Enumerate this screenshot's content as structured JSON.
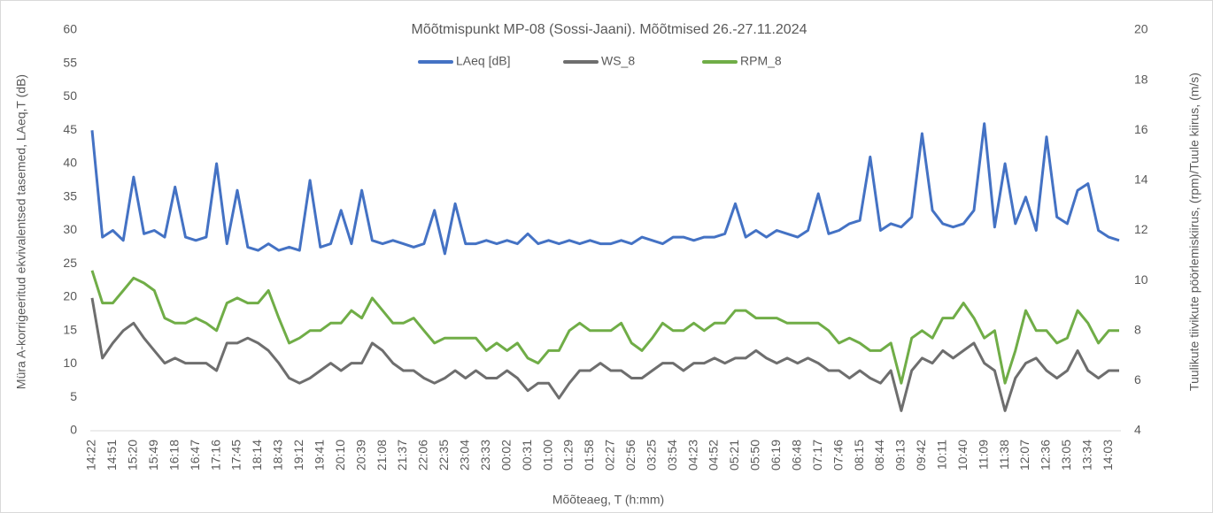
{
  "chart_data": {
    "type": "line",
    "title": "Mõõtmispunkt MP-08 (Sossi-Jaani). Mõõtmised 26.-27.11.2024",
    "x_label": "Mõõteaeg, T (h:mm)",
    "y_label": "Müra A-korrigeeritud ekvivalentsed tasemed, LAeq,T (dB)",
    "y2_label": "Tuulikute tiivikute pöörlemiskiirus, (rpm)/Tuule kiirus, (m/s)",
    "categories": [
      "14:22",
      null,
      "14:51",
      null,
      "15:20",
      null,
      "15:49",
      null,
      "16:18",
      null,
      "16:47",
      null,
      "17:16",
      null,
      "17:45",
      null,
      "18:14",
      null,
      "18:43",
      null,
      "19:12",
      null,
      "19:41",
      null,
      "20:10",
      null,
      "20:39",
      null,
      "21:08",
      null,
      "21:37",
      null,
      "22:06",
      null,
      "22:35",
      null,
      "23:04",
      null,
      "23:33",
      null,
      "00:02",
      null,
      "00:31",
      null,
      "01:00",
      null,
      "01:29",
      null,
      "01:58",
      null,
      "02:27",
      null,
      "02:56",
      null,
      "03:25",
      null,
      "03:54",
      null,
      "04:23",
      null,
      "04:52",
      null,
      "05:21",
      null,
      "05:50",
      null,
      "06:19",
      null,
      "06:48",
      null,
      "07:17",
      null,
      "07:46",
      null,
      "08:15",
      null,
      "08:44",
      null,
      "09:13",
      null,
      "09:42",
      null,
      "10:11",
      null,
      "10:40",
      null,
      "11:09",
      null,
      "11:38",
      null,
      "12:07",
      null,
      "12:36",
      null,
      "13:05",
      null,
      "13:34",
      null,
      "14:03",
      null
    ],
    "series": [
      {
        "name": "LAeq [dB]",
        "color": "#4472c4",
        "values": [
          45,
          29,
          30,
          28.5,
          38,
          29.5,
          30,
          29,
          36.5,
          29,
          28.5,
          29,
          40,
          28,
          36,
          27.5,
          27,
          28,
          27,
          27.5,
          27,
          37.5,
          27.5,
          28,
          33,
          28,
          36,
          28.5,
          28,
          28.5,
          28,
          27.5,
          28,
          33,
          26.5,
          34,
          28,
          28,
          28.5,
          28,
          28.5,
          28,
          29.5,
          28,
          28.5,
          28,
          28.5,
          28,
          28.5,
          28,
          28,
          28.5,
          28,
          29,
          28.5,
          28,
          29,
          29,
          28.5,
          29,
          29,
          29.5,
          34,
          29,
          30,
          29,
          30,
          29.5,
          29,
          30,
          35.5,
          29.5,
          30,
          31,
          31.5,
          41,
          30,
          31,
          30.5,
          32,
          44.5,
          33,
          31,
          30.5,
          31,
          33,
          46,
          30.5,
          40,
          31,
          35,
          30,
          44,
          32,
          31,
          36,
          37,
          30,
          29,
          28.5
        ]
      },
      {
        "name": "WS_8",
        "color": "#6e6e6e",
        "axis": "y2",
        "values": [
          9.3,
          6.9,
          7.5,
          8.0,
          8.3,
          7.7,
          7.2,
          6.7,
          6.9,
          6.7,
          6.7,
          6.7,
          6.4,
          7.5,
          7.5,
          7.7,
          7.5,
          7.2,
          6.7,
          6.1,
          5.9,
          6.1,
          6.4,
          6.7,
          6.4,
          6.7,
          6.7,
          7.5,
          7.2,
          6.7,
          6.4,
          6.4,
          6.1,
          5.9,
          6.1,
          6.4,
          6.1,
          6.4,
          6.1,
          6.1,
          6.4,
          6.1,
          5.6,
          5.9,
          5.9,
          5.3,
          5.9,
          6.4,
          6.4,
          6.7,
          6.4,
          6.4,
          6.1,
          6.1,
          6.4,
          6.7,
          6.7,
          6.4,
          6.7,
          6.7,
          6.9,
          6.7,
          6.9,
          6.9,
          7.2,
          6.9,
          6.7,
          6.9,
          6.7,
          6.9,
          6.7,
          6.4,
          6.4,
          6.1,
          6.4,
          6.1,
          5.9,
          6.4,
          4.8,
          6.4,
          6.9,
          6.7,
          7.2,
          6.9,
          7.2,
          7.5,
          6.7,
          6.4,
          4.8,
          6.1,
          6.7,
          6.9,
          6.4,
          6.1,
          6.4,
          7.2,
          6.4,
          6.1,
          6.4,
          6.4
        ]
      },
      {
        "name": "RPM_8",
        "color": "#70ad47",
        "axis": "y2",
        "values": [
          10.4,
          9.1,
          9.1,
          9.6,
          10.1,
          9.9,
          9.6,
          8.5,
          8.3,
          8.3,
          8.5,
          8.3,
          8.0,
          9.1,
          9.3,
          9.1,
          9.1,
          9.6,
          8.5,
          7.5,
          7.7,
          8.0,
          8.0,
          8.3,
          8.3,
          8.8,
          8.5,
          9.3,
          8.8,
          8.3,
          8.3,
          8.5,
          8.0,
          7.5,
          7.7,
          7.7,
          7.7,
          7.7,
          7.2,
          7.5,
          7.2,
          7.5,
          6.9,
          6.7,
          7.2,
          7.2,
          8.0,
          8.3,
          8.0,
          8.0,
          8.0,
          8.3,
          7.5,
          7.2,
          7.7,
          8.3,
          8.0,
          8.0,
          8.3,
          8.0,
          8.3,
          8.3,
          8.8,
          8.8,
          8.5,
          8.5,
          8.5,
          8.3,
          8.3,
          8.3,
          8.3,
          8.0,
          7.5,
          7.7,
          7.5,
          7.2,
          7.2,
          7.5,
          5.9,
          7.7,
          8.0,
          7.7,
          8.5,
          8.5,
          9.1,
          8.5,
          7.7,
          8.0,
          5.9,
          7.2,
          8.8,
          8.0,
          8.0,
          7.5,
          7.7,
          8.8,
          8.3,
          7.5,
          8.0,
          8.0
        ]
      }
    ],
    "ylim": [
      0,
      60
    ],
    "yticks": [
      0,
      5,
      10,
      15,
      20,
      25,
      30,
      35,
      40,
      45,
      50,
      55,
      60
    ],
    "y2lim": [
      4,
      20
    ],
    "y2ticks": [
      4,
      6,
      8,
      10,
      12,
      14,
      16,
      18,
      20
    ],
    "legend": "top",
    "grid": false
  }
}
